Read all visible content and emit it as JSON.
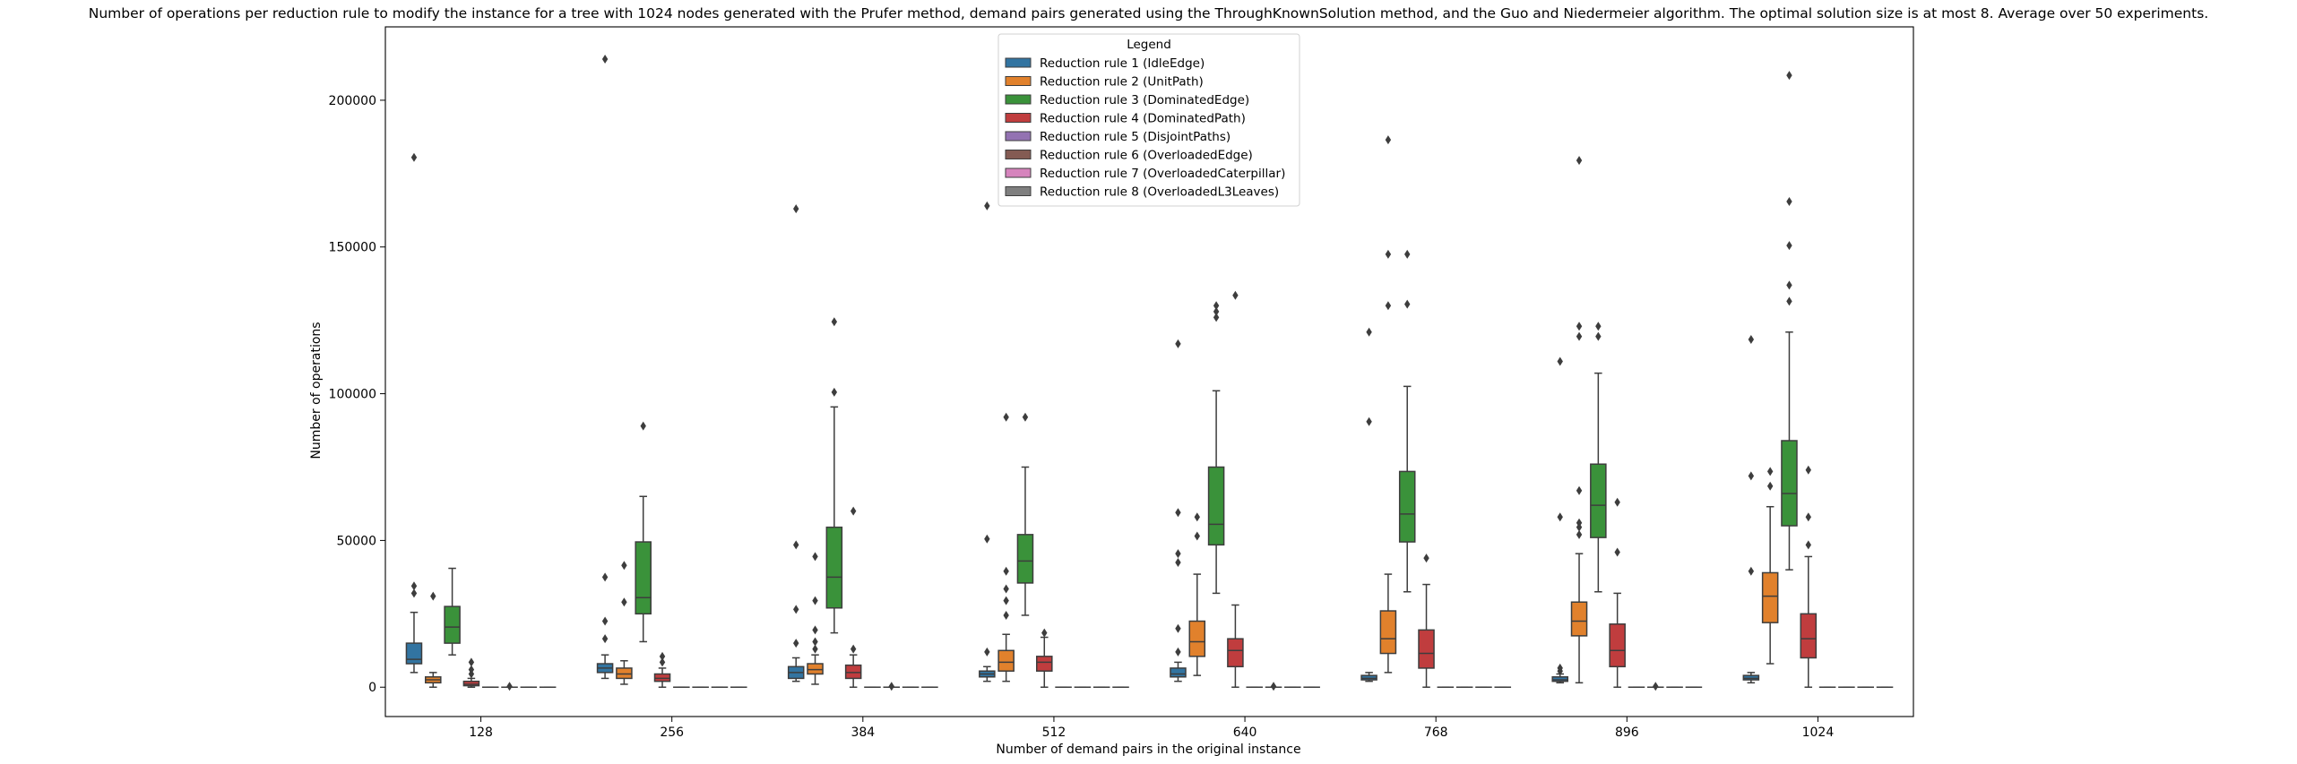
{
  "chart_data": {
    "type": "box",
    "title": "Number of operations per reduction rule to modify the instance for a tree with 1024 nodes generated with the Prufer method, demand pairs generated using the ThroughKnownSolution method, and the Guo and Niedermeier algorithm. The optimal solution size is at most 8. Average over 50 experiments.",
    "xlabel": "Number of demand pairs in the original instance",
    "ylabel": "Number of operations",
    "categories": [
      "128",
      "256",
      "384",
      "512",
      "640",
      "768",
      "896",
      "1024"
    ],
    "ylim": [
      -10000,
      225000
    ],
    "yticks": [
      0,
      50000,
      100000,
      150000,
      200000
    ],
    "ytick_labels": [
      "0",
      "50000",
      "100000",
      "150000",
      "200000"
    ],
    "grid": false,
    "legend": {
      "title": "Legend",
      "placement": "upper center",
      "entries": [
        "Reduction rule 1 (IdleEdge)",
        "Reduction rule 2 (UnitPath)",
        "Reduction rule 3 (DominatedEdge)",
        "Reduction rule 4 (DominatedPath)",
        "Reduction rule 5 (DisjointPaths)",
        "Reduction rule 6 (OverloadedEdge)",
        "Reduction rule 7 (OverloadedCaterpillar)",
        "Reduction rule 8 (OverloadedL3Leaves)"
      ]
    },
    "series": [
      {
        "name": "Reduction rule 1 (IdleEdge)",
        "color": "#3274a1",
        "boxes": [
          {
            "whislo": 5000,
            "q1": 8000,
            "med": 9500,
            "q3": 15000,
            "whishi": 25500,
            "fliers": [
              32000,
              34500,
              180500
            ]
          },
          {
            "whislo": 3000,
            "q1": 5000,
            "med": 6500,
            "q3": 8000,
            "whishi": 11000,
            "fliers": [
              16500,
              22500,
              37500,
              214000
            ]
          },
          {
            "whislo": 2000,
            "q1": 3000,
            "med": 5000,
            "q3": 7000,
            "whishi": 10000,
            "fliers": [
              15000,
              26500,
              48500,
              163000
            ]
          },
          {
            "whislo": 2000,
            "q1": 3500,
            "med": 4500,
            "q3": 5500,
            "whishi": 7000,
            "fliers": [
              12000,
              50500,
              164000
            ]
          },
          {
            "whislo": 2000,
            "q1": 3500,
            "med": 4500,
            "q3": 6500,
            "whishi": 8500,
            "fliers": [
              12000,
              20000,
              42500,
              45500,
              59500,
              117000
            ]
          },
          {
            "whislo": 2000,
            "q1": 2500,
            "med": 3000,
            "q3": 4000,
            "whishi": 5000,
            "fliers": [
              90500,
              121000
            ]
          },
          {
            "whislo": 1500,
            "q1": 2000,
            "med": 2500,
            "q3": 3500,
            "whishi": 4500,
            "fliers": [
              5500,
              6500,
              58000,
              111000
            ]
          },
          {
            "whislo": 1500,
            "q1": 2500,
            "med": 3000,
            "q3": 4000,
            "whishi": 5000,
            "fliers": [
              39500,
              72000,
              118500
            ]
          }
        ]
      },
      {
        "name": "Reduction rule 2 (UnitPath)",
        "color": "#e1812c",
        "boxes": [
          {
            "whislo": 0,
            "q1": 1500,
            "med": 2500,
            "q3": 3500,
            "whishi": 5000,
            "fliers": [
              31000
            ]
          },
          {
            "whislo": 1000,
            "q1": 3000,
            "med": 4500,
            "q3": 6500,
            "whishi": 9000,
            "fliers": [
              29000,
              41500
            ]
          },
          {
            "whislo": 1000,
            "q1": 4500,
            "med": 6000,
            "q3": 8000,
            "whishi": 11000,
            "fliers": [
              13000,
              15500,
              19500,
              29500,
              44500
            ]
          },
          {
            "whislo": 2000,
            "q1": 5500,
            "med": 8500,
            "q3": 12500,
            "whishi": 18000,
            "fliers": [
              24500,
              29500,
              33500,
              39500,
              92000
            ]
          },
          {
            "whislo": 4000,
            "q1": 10500,
            "med": 15500,
            "q3": 22500,
            "whishi": 38500,
            "fliers": [
              51500,
              58000
            ]
          },
          {
            "whislo": 5000,
            "q1": 11500,
            "med": 16500,
            "q3": 26000,
            "whishi": 38500,
            "fliers": [
              130000,
              147500,
              186500
            ]
          },
          {
            "whislo": 1500,
            "q1": 17500,
            "med": 22500,
            "q3": 29000,
            "whishi": 45500,
            "fliers": [
              52000,
              54500,
              56000,
              67000,
              119500,
              123000,
              179500
            ]
          },
          {
            "whislo": 8000,
            "q1": 22000,
            "med": 31000,
            "q3": 39000,
            "whishi": 61500,
            "fliers": [
              68500,
              73500
            ]
          }
        ]
      },
      {
        "name": "Reduction rule 3 (DominatedEdge)",
        "color": "#3a923a",
        "boxes": [
          {
            "whislo": 11000,
            "q1": 15000,
            "med": 20500,
            "q3": 27500,
            "whishi": 40500,
            "fliers": []
          },
          {
            "whislo": 15500,
            "q1": 25000,
            "med": 30500,
            "q3": 49500,
            "whishi": 65000,
            "fliers": [
              89000
            ]
          },
          {
            "whislo": 18500,
            "q1": 27000,
            "med": 37500,
            "q3": 54500,
            "whishi": 95500,
            "fliers": [
              100500,
              124500
            ]
          },
          {
            "whislo": 24500,
            "q1": 35500,
            "med": 43000,
            "q3": 52000,
            "whishi": 75000,
            "fliers": [
              92000
            ]
          },
          {
            "whislo": 32000,
            "q1": 48500,
            "med": 55500,
            "q3": 75000,
            "whishi": 101000,
            "fliers": [
              126000,
              128000,
              130000
            ]
          },
          {
            "whislo": 32500,
            "q1": 49500,
            "med": 59000,
            "q3": 73500,
            "whishi": 102500,
            "fliers": [
              130500,
              147500
            ]
          },
          {
            "whislo": 32500,
            "q1": 51000,
            "med": 62000,
            "q3": 76000,
            "whishi": 107000,
            "fliers": [
              119500,
              123000
            ]
          },
          {
            "whislo": 40000,
            "q1": 55000,
            "med": 66000,
            "q3": 84000,
            "whishi": 121000,
            "fliers": [
              131500,
              137000,
              150500,
              165500,
              208500
            ]
          }
        ]
      },
      {
        "name": "Reduction rule 4 (DominatedPath)",
        "color": "#c03d3e",
        "boxes": [
          {
            "whislo": 0,
            "q1": 500,
            "med": 1000,
            "q3": 2000,
            "whishi": 3000,
            "fliers": [
              4500,
              6000,
              8500
            ]
          },
          {
            "whislo": 0,
            "q1": 2000,
            "med": 3000,
            "q3": 4500,
            "whishi": 6500,
            "fliers": [
              8500,
              10500
            ]
          },
          {
            "whislo": 0,
            "q1": 3000,
            "med": 5000,
            "q3": 7500,
            "whishi": 11000,
            "fliers": [
              13000,
              60000
            ]
          },
          {
            "whislo": 0,
            "q1": 5500,
            "med": 8500,
            "q3": 10500,
            "whishi": 17000,
            "fliers": [
              18500
            ]
          },
          {
            "whislo": 0,
            "q1": 7000,
            "med": 12500,
            "q3": 16500,
            "whishi": 28000,
            "fliers": [
              133500
            ]
          },
          {
            "whislo": 0,
            "q1": 6500,
            "med": 11500,
            "q3": 19500,
            "whishi": 35000,
            "fliers": [
              44000
            ]
          },
          {
            "whislo": 0,
            "q1": 7000,
            "med": 12500,
            "q3": 21500,
            "whishi": 32000,
            "fliers": [
              46000,
              63000
            ]
          },
          {
            "whislo": 0,
            "q1": 10000,
            "med": 16500,
            "q3": 25000,
            "whishi": 44500,
            "fliers": [
              48500,
              58000,
              74000
            ]
          }
        ]
      },
      {
        "name": "Reduction rule 5 (DisjointPaths)",
        "color": "#9372b2",
        "boxes": [
          {
            "whislo": 0,
            "q1": 0,
            "med": 0,
            "q3": 0,
            "whishi": 0,
            "fliers": []
          },
          {
            "whislo": 0,
            "q1": 0,
            "med": 0,
            "q3": 0,
            "whishi": 0,
            "fliers": []
          },
          {
            "whislo": 0,
            "q1": 0,
            "med": 0,
            "q3": 0,
            "whishi": 0,
            "fliers": []
          },
          {
            "whislo": 0,
            "q1": 0,
            "med": 0,
            "q3": 0,
            "whishi": 0,
            "fliers": []
          },
          {
            "whislo": 0,
            "q1": 0,
            "med": 0,
            "q3": 0,
            "whishi": 0,
            "fliers": []
          },
          {
            "whislo": 0,
            "q1": 0,
            "med": 0,
            "q3": 0,
            "whishi": 0,
            "fliers": []
          },
          {
            "whislo": 0,
            "q1": 0,
            "med": 0,
            "q3": 0,
            "whishi": 0,
            "fliers": []
          },
          {
            "whislo": 0,
            "q1": 0,
            "med": 0,
            "q3": 0,
            "whishi": 0,
            "fliers": []
          }
        ]
      },
      {
        "name": "Reduction rule 6 (OverloadedEdge)",
        "color": "#845b53",
        "boxes": [
          {
            "whislo": 0,
            "q1": 0,
            "med": 0,
            "q3": 0,
            "whishi": 0,
            "fliers": [
              300
            ]
          },
          {
            "whislo": 0,
            "q1": 0,
            "med": 0,
            "q3": 0,
            "whishi": 0,
            "fliers": []
          },
          {
            "whislo": 0,
            "q1": 0,
            "med": 0,
            "q3": 0,
            "whishi": 0,
            "fliers": [
              300
            ]
          },
          {
            "whislo": 0,
            "q1": 0,
            "med": 0,
            "q3": 0,
            "whishi": 0,
            "fliers": []
          },
          {
            "whislo": 0,
            "q1": 0,
            "med": 0,
            "q3": 0,
            "whishi": 0,
            "fliers": [
              300
            ]
          },
          {
            "whislo": 0,
            "q1": 0,
            "med": 0,
            "q3": 0,
            "whishi": 0,
            "fliers": []
          },
          {
            "whislo": 0,
            "q1": 0,
            "med": 0,
            "q3": 0,
            "whishi": 0,
            "fliers": [
              300
            ]
          },
          {
            "whislo": 0,
            "q1": 0,
            "med": 0,
            "q3": 0,
            "whishi": 0,
            "fliers": []
          }
        ]
      },
      {
        "name": "Reduction rule 7 (OverloadedCaterpillar)",
        "color": "#d684bd",
        "boxes": [
          {
            "whislo": 0,
            "q1": 0,
            "med": 0,
            "q3": 0,
            "whishi": 0,
            "fliers": []
          },
          {
            "whislo": 0,
            "q1": 0,
            "med": 0,
            "q3": 0,
            "whishi": 0,
            "fliers": []
          },
          {
            "whislo": 0,
            "q1": 0,
            "med": 0,
            "q3": 0,
            "whishi": 0,
            "fliers": []
          },
          {
            "whislo": 0,
            "q1": 0,
            "med": 0,
            "q3": 0,
            "whishi": 0,
            "fliers": []
          },
          {
            "whislo": 0,
            "q1": 0,
            "med": 0,
            "q3": 0,
            "whishi": 0,
            "fliers": []
          },
          {
            "whislo": 0,
            "q1": 0,
            "med": 0,
            "q3": 0,
            "whishi": 0,
            "fliers": []
          },
          {
            "whislo": 0,
            "q1": 0,
            "med": 0,
            "q3": 0,
            "whishi": 0,
            "fliers": []
          },
          {
            "whislo": 0,
            "q1": 0,
            "med": 0,
            "q3": 0,
            "whishi": 0,
            "fliers": []
          }
        ]
      },
      {
        "name": "Reduction rule 8 (OverloadedL3Leaves)",
        "color": "#7f7f7f",
        "boxes": [
          {
            "whislo": 0,
            "q1": 0,
            "med": 0,
            "q3": 0,
            "whishi": 0,
            "fliers": []
          },
          {
            "whislo": 0,
            "q1": 0,
            "med": 0,
            "q3": 0,
            "whishi": 0,
            "fliers": []
          },
          {
            "whislo": 0,
            "q1": 0,
            "med": 0,
            "q3": 0,
            "whishi": 0,
            "fliers": []
          },
          {
            "whislo": 0,
            "q1": 0,
            "med": 0,
            "q3": 0,
            "whishi": 0,
            "fliers": []
          },
          {
            "whislo": 0,
            "q1": 0,
            "med": 0,
            "q3": 0,
            "whishi": 0,
            "fliers": []
          },
          {
            "whislo": 0,
            "q1": 0,
            "med": 0,
            "q3": 0,
            "whishi": 0,
            "fliers": []
          },
          {
            "whislo": 0,
            "q1": 0,
            "med": 0,
            "q3": 0,
            "whishi": 0,
            "fliers": []
          },
          {
            "whislo": 0,
            "q1": 0,
            "med": 0,
            "q3": 0,
            "whishi": 0,
            "fliers": []
          }
        ]
      }
    ]
  }
}
